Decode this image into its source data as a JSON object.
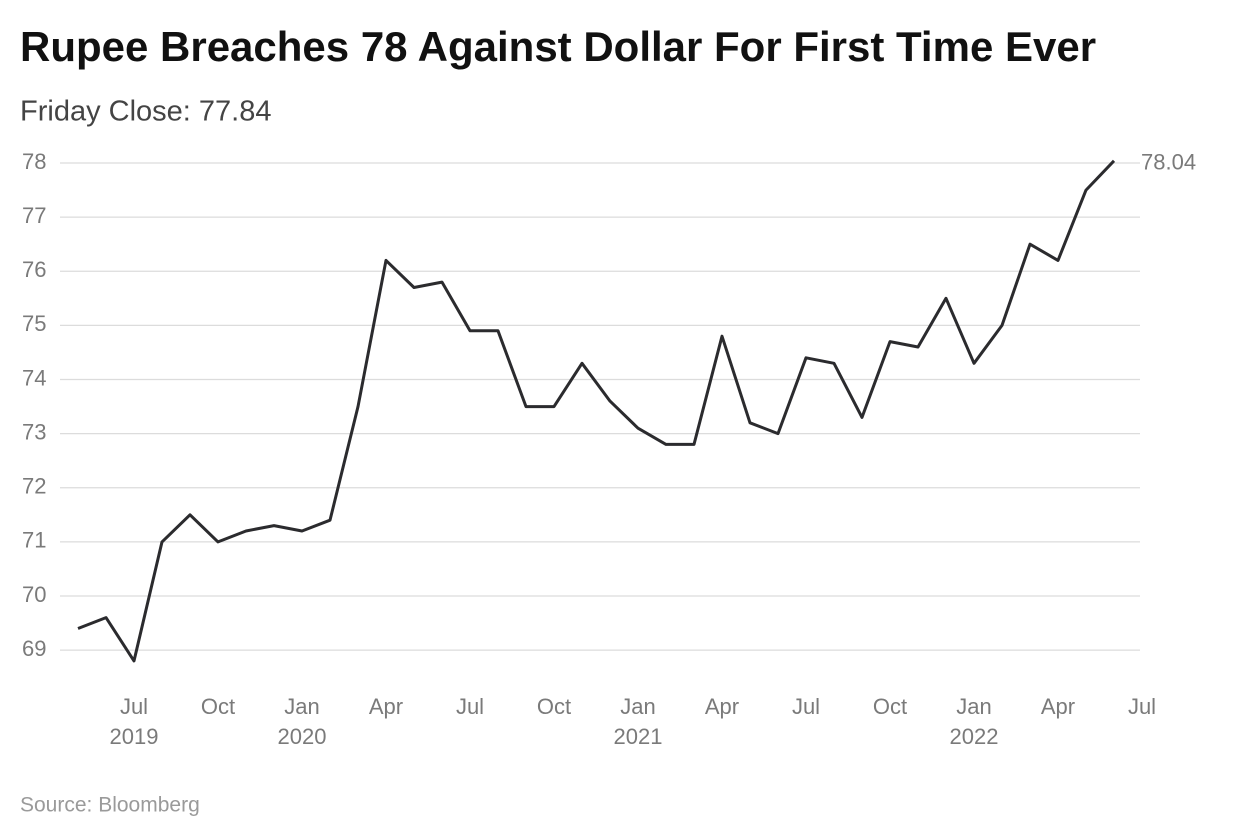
{
  "chart_data": {
    "type": "line",
    "title": "Rupee Breaches 78 Against Dollar For First Time Ever",
    "subtitle": "Friday Close: 77.84",
    "source": "Source: Bloomberg",
    "x": [
      "2019-05",
      "2019-06",
      "2019-07",
      "2019-08",
      "2019-09",
      "2019-10",
      "2019-11",
      "2019-12",
      "2020-01",
      "2020-02",
      "2020-03",
      "2020-04",
      "2020-05",
      "2020-06",
      "2020-07",
      "2020-08",
      "2020-09",
      "2020-10",
      "2020-11",
      "2020-12",
      "2021-01",
      "2021-02",
      "2021-03",
      "2021-04",
      "2021-05",
      "2021-06",
      "2021-07",
      "2021-08",
      "2021-09",
      "2021-10",
      "2021-11",
      "2021-12",
      "2022-01",
      "2022-02",
      "2022-03",
      "2022-04",
      "2022-05",
      "2022-06"
    ],
    "values": [
      69.4,
      69.6,
      68.8,
      71.0,
      71.5,
      71.0,
      71.2,
      71.3,
      71.2,
      71.4,
      73.5,
      76.2,
      75.7,
      75.8,
      74.9,
      74.9,
      73.5,
      73.5,
      74.3,
      73.6,
      73.1,
      72.8,
      72.8,
      74.8,
      73.2,
      73.0,
      74.4,
      74.3,
      73.3,
      74.7,
      74.6,
      75.5,
      74.3,
      75.0,
      76.5,
      76.2,
      77.5,
      78.04
    ],
    "color": "#2b2b2e",
    "xlim": [
      "2019-04",
      "2022-07"
    ],
    "xticks": [
      {
        "value": "2019-07",
        "label": "Jul"
      },
      {
        "value": "2019-10",
        "label": "Oct"
      },
      {
        "value": "2020-01",
        "label": "Jan"
      },
      {
        "value": "2020-04",
        "label": "Apr"
      },
      {
        "value": "2020-07",
        "label": "Jul"
      },
      {
        "value": "2020-10",
        "label": "Oct"
      },
      {
        "value": "2021-01",
        "label": "Jan"
      },
      {
        "value": "2021-04",
        "label": "Apr"
      },
      {
        "value": "2021-07",
        "label": "Jul"
      },
      {
        "value": "2021-10",
        "label": "Oct"
      },
      {
        "value": "2022-01",
        "label": "Jan"
      },
      {
        "value": "2022-04",
        "label": "Apr"
      },
      {
        "value": "2022-07",
        "label": "Jul"
      }
    ],
    "year_labels": [
      {
        "value": "2019-07",
        "label": "2019"
      },
      {
        "value": "2020-01",
        "label": "2020"
      },
      {
        "value": "2021-01",
        "label": "2021"
      },
      {
        "value": "2022-01",
        "label": "2022"
      }
    ],
    "ylim": [
      68.3,
      78
    ],
    "yticks": [
      69,
      70,
      71,
      72,
      73,
      74,
      75,
      76,
      77,
      78
    ],
    "grid": true
  }
}
